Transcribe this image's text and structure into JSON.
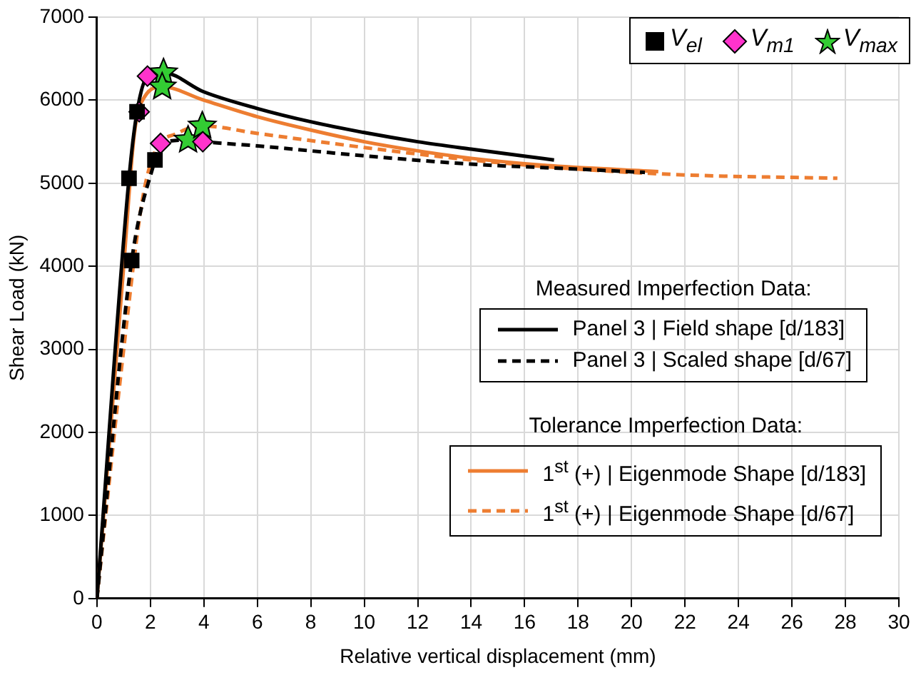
{
  "chart_data": {
    "type": "line",
    "xlabel": "Relative vertical displacement (mm)",
    "ylabel": "Shear Load (kN)",
    "xlim": [
      0,
      30
    ],
    "xticks": [
      0,
      2,
      4,
      6,
      8,
      10,
      12,
      14,
      16,
      18,
      20,
      22,
      24,
      26,
      28,
      30
    ],
    "ylim": [
      0,
      7000
    ],
    "yticks": [
      0,
      1000,
      2000,
      3000,
      4000,
      5000,
      6000,
      7000
    ],
    "grid": true,
    "legend": "top right",
    "annotations": [
      "Measured Imperfection Data:",
      "Tolerance Imperfection Data:"
    ],
    "series": [
      {
        "name": "Panel 3 | Field shape [d/183]",
        "color": "#000000",
        "line_style": "solid",
        "marker": "none",
        "x": [
          0,
          1.2,
          1.5,
          1.9,
          2.49,
          4,
          6,
          8,
          10,
          12,
          14,
          17.1
        ],
        "values": [
          0,
          5060,
          5860,
          6290,
          6330,
          6100,
          5900,
          5740,
          5610,
          5500,
          5410,
          5280
        ]
      },
      {
        "name": "Panel 3 | Scaled shape [d/67]",
        "color": "#000000",
        "line_style": "dashed",
        "marker": "none",
        "x": [
          0,
          1.3,
          2.17,
          2.38,
          3.41,
          3.96,
          6,
          8,
          10,
          14,
          18,
          20.5
        ],
        "values": [
          0,
          4070,
          5280,
          5480,
          5520,
          5500,
          5450,
          5390,
          5330,
          5230,
          5170,
          5130
        ]
      },
      {
        "name": "1$^{st}$ (+) | Eigenmode Shape [d/183]",
        "color": "#ed7d31",
        "line_style": "solid",
        "marker": "none",
        "x": [
          0,
          1.0,
          1.4,
          1.8,
          2.44,
          4,
          6,
          8,
          10,
          12,
          14,
          17,
          21
        ],
        "values": [
          0,
          4000,
          5600,
          6050,
          6160,
          6000,
          5800,
          5640,
          5500,
          5390,
          5300,
          5210,
          5140
        ]
      },
      {
        "name": "1$^{st}$ (+) | Eigenmode Shape [d/67]",
        "color": "#ed7d31",
        "line_style": "dashed",
        "marker": "none",
        "x": [
          0,
          1.0,
          1.7,
          2.2,
          3.0,
          3.94,
          6,
          10,
          14,
          18,
          22,
          27.7
        ],
        "values": [
          0,
          3000,
          4800,
          5400,
          5600,
          5690,
          5600,
          5430,
          5280,
          5170,
          5100,
          5060
        ]
      },
      {
        "name": "V$_{el}$",
        "type": "scatter",
        "color": "#000000",
        "marker": "square",
        "x": [
          1.2,
          1.3,
          1.5,
          2.17
        ],
        "values": [
          5060,
          4070,
          5860,
          5280
        ]
      },
      {
        "name": "V$_{m1}$",
        "type": "scatter",
        "color": "#ff33cc",
        "marker": "diamond",
        "x": [
          1.89,
          1.58,
          2.38,
          3.96
        ],
        "values": [
          6290,
          5860,
          5480,
          5500
        ]
      },
      {
        "name": "V$_{max}$",
        "type": "scatter",
        "color": "#33cc33",
        "marker": "star",
        "x": [
          2.49,
          2.44,
          3.41,
          3.94
        ],
        "values": [
          6330,
          6160,
          5520,
          5690
        ]
      }
    ]
  }
}
